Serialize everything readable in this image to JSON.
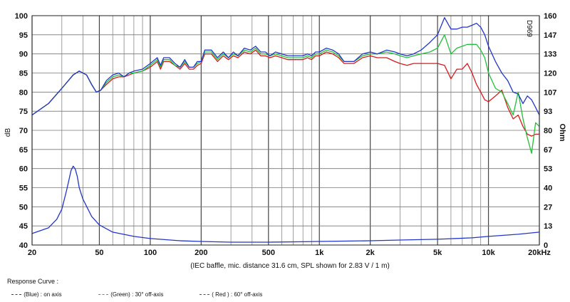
{
  "chart_data": {
    "type": "line",
    "caption": "(IEC baffle, mic. distance 31.6 cm, SPL shown for 2.83 V / 1 m)",
    "watermark": "D969",
    "y_left": {
      "label": "dB",
      "range": [
        40,
        100
      ],
      "ticks": [
        "100",
        "95",
        "90",
        "85",
        "80",
        "75",
        "70",
        "65",
        "60",
        "55",
        "50",
        "45",
        "40"
      ]
    },
    "y_right": {
      "label": "Ohm",
      "range": [
        0,
        160
      ],
      "ticks": [
        "160",
        "147",
        "133",
        "120",
        "107",
        "93",
        "80",
        "67",
        "53",
        "40",
        "27",
        "13",
        "0"
      ]
    },
    "x": {
      "scale": "log",
      "range": [
        20,
        20000
      ],
      "ticks": [
        {
          "v": 20,
          "label": "20"
        },
        {
          "v": 50,
          "label": "50"
        },
        {
          "v": 100,
          "label": "100"
        },
        {
          "v": 200,
          "label": "200"
        },
        {
          "v": 500,
          "label": "500"
        },
        {
          "v": 1000,
          "label": "1k"
        },
        {
          "v": 2000,
          "label": "2k"
        },
        {
          "v": 5000,
          "label": "5k"
        },
        {
          "v": 10000,
          "label": "10k"
        },
        {
          "v": 20000,
          "label": "20kHz"
        }
      ]
    },
    "grid": true,
    "series": [
      {
        "name": "(Blue) : on axis",
        "color": "#2236c8",
        "axis": "left",
        "points": [
          [
            20,
            74
          ],
          [
            25,
            77
          ],
          [
            30,
            81
          ],
          [
            35,
            84.5
          ],
          [
            38,
            85.5
          ],
          [
            42,
            84.5
          ],
          [
            45,
            82
          ],
          [
            48,
            80
          ],
          [
            51,
            80.5
          ],
          [
            55,
            83
          ],
          [
            60,
            84.5
          ],
          [
            65,
            85
          ],
          [
            70,
            84
          ],
          [
            75,
            85
          ],
          [
            80,
            85.5
          ],
          [
            90,
            86
          ],
          [
            100,
            87.5
          ],
          [
            110,
            89
          ],
          [
            115,
            87
          ],
          [
            120,
            89
          ],
          [
            130,
            89
          ],
          [
            140,
            87.5
          ],
          [
            150,
            86.5
          ],
          [
            160,
            88.5
          ],
          [
            170,
            86.5
          ],
          [
            180,
            86.5
          ],
          [
            190,
            88
          ],
          [
            200,
            88
          ],
          [
            210,
            91
          ],
          [
            230,
            91
          ],
          [
            250,
            89
          ],
          [
            270,
            90.5
          ],
          [
            290,
            89
          ],
          [
            310,
            90.5
          ],
          [
            330,
            89.5
          ],
          [
            360,
            91.5
          ],
          [
            390,
            91
          ],
          [
            420,
            92
          ],
          [
            450,
            90.5
          ],
          [
            480,
            90.5
          ],
          [
            510,
            89.5
          ],
          [
            550,
            90.5
          ],
          [
            600,
            90
          ],
          [
            650,
            89.5
          ],
          [
            700,
            89.5
          ],
          [
            750,
            89.5
          ],
          [
            800,
            89.5
          ],
          [
            850,
            90
          ],
          [
            900,
            89.5
          ],
          [
            950,
            90.5
          ],
          [
            1000,
            90.5
          ],
          [
            1100,
            91.5
          ],
          [
            1200,
            91
          ],
          [
            1300,
            90
          ],
          [
            1400,
            88
          ],
          [
            1600,
            88
          ],
          [
            1800,
            90
          ],
          [
            2000,
            90.5
          ],
          [
            2200,
            90
          ],
          [
            2500,
            91
          ],
          [
            2800,
            90.5
          ],
          [
            3000,
            90
          ],
          [
            3300,
            89.5
          ],
          [
            3600,
            90
          ],
          [
            4000,
            91
          ],
          [
            4500,
            93
          ],
          [
            5000,
            95
          ],
          [
            5500,
            99.5
          ],
          [
            6000,
            96.5
          ],
          [
            6500,
            96.5
          ],
          [
            7000,
            97
          ],
          [
            7500,
            97
          ],
          [
            8000,
            97.5
          ],
          [
            8500,
            98
          ],
          [
            9000,
            97
          ],
          [
            9500,
            95
          ],
          [
            10000,
            92
          ],
          [
            11000,
            88
          ],
          [
            12000,
            85
          ],
          [
            13000,
            83
          ],
          [
            14000,
            80
          ],
          [
            15000,
            79.5
          ],
          [
            16000,
            77
          ],
          [
            17000,
            79
          ],
          [
            18000,
            78
          ],
          [
            19000,
            76
          ],
          [
            20000,
            74
          ]
        ]
      },
      {
        "name": "(Green) : 30° off-axis",
        "color": "#22c03a",
        "axis": "left",
        "points": [
          [
            20,
            74
          ],
          [
            25,
            77
          ],
          [
            30,
            81
          ],
          [
            35,
            84.5
          ],
          [
            38,
            85.5
          ],
          [
            42,
            84.5
          ],
          [
            45,
            82
          ],
          [
            48,
            80
          ],
          [
            51,
            80.5
          ],
          [
            55,
            82.5
          ],
          [
            60,
            84
          ],
          [
            65,
            84.5
          ],
          [
            70,
            84
          ],
          [
            75,
            85
          ],
          [
            80,
            85
          ],
          [
            90,
            85.5
          ],
          [
            100,
            87
          ],
          [
            110,
            88.5
          ],
          [
            115,
            86.5
          ],
          [
            120,
            88.5
          ],
          [
            130,
            88.5
          ],
          [
            140,
            87
          ],
          [
            150,
            86.5
          ],
          [
            160,
            88
          ],
          [
            170,
            86.5
          ],
          [
            180,
            86.5
          ],
          [
            190,
            87.5
          ],
          [
            200,
            88
          ],
          [
            210,
            90.5
          ],
          [
            230,
            90.5
          ],
          [
            250,
            88.5
          ],
          [
            270,
            90
          ],
          [
            290,
            89
          ],
          [
            310,
            90
          ],
          [
            330,
            89.5
          ],
          [
            360,
            91
          ],
          [
            390,
            90.5
          ],
          [
            420,
            91.5
          ],
          [
            450,
            90
          ],
          [
            480,
            90
          ],
          [
            510,
            89.5
          ],
          [
            550,
            90
          ],
          [
            600,
            89.5
          ],
          [
            650,
            89
          ],
          [
            700,
            89
          ],
          [
            750,
            89
          ],
          [
            800,
            89
          ],
          [
            850,
            89.5
          ],
          [
            900,
            89
          ],
          [
            950,
            90
          ],
          [
            1000,
            90
          ],
          [
            1100,
            91
          ],
          [
            1200,
            90.5
          ],
          [
            1300,
            89.5
          ],
          [
            1400,
            88
          ],
          [
            1600,
            88
          ],
          [
            1800,
            89.5
          ],
          [
            2000,
            90
          ],
          [
            2200,
            90
          ],
          [
            2500,
            90.5
          ],
          [
            2800,
            90
          ],
          [
            3000,
            89.5
          ],
          [
            3300,
            89
          ],
          [
            3600,
            89.5
          ],
          [
            4000,
            90
          ],
          [
            4500,
            90.5
          ],
          [
            5000,
            91.5
          ],
          [
            5500,
            95
          ],
          [
            6000,
            90
          ],
          [
            6500,
            91.5
          ],
          [
            7000,
            92
          ],
          [
            7500,
            92.5
          ],
          [
            8000,
            92.5
          ],
          [
            8500,
            92.5
          ],
          [
            9000,
            91
          ],
          [
            9500,
            89
          ],
          [
            10000,
            85
          ],
          [
            11000,
            81
          ],
          [
            12000,
            80
          ],
          [
            13000,
            77
          ],
          [
            14000,
            74
          ],
          [
            15000,
            80
          ],
          [
            16000,
            73
          ],
          [
            17000,
            68
          ],
          [
            18000,
            64
          ],
          [
            19000,
            72
          ],
          [
            20000,
            71
          ]
        ]
      },
      {
        "name": "( Red ) : 60° off-axis",
        "color": "#d81a1a",
        "axis": "left",
        "points": [
          [
            20,
            74
          ],
          [
            25,
            77
          ],
          [
            30,
            81
          ],
          [
            35,
            84.5
          ],
          [
            38,
            85.5
          ],
          [
            42,
            84.5
          ],
          [
            45,
            82
          ],
          [
            48,
            80
          ],
          [
            51,
            80.5
          ],
          [
            55,
            82
          ],
          [
            60,
            83.5
          ],
          [
            65,
            84
          ],
          [
            70,
            84
          ],
          [
            75,
            84.5
          ],
          [
            80,
            85
          ],
          [
            90,
            85.5
          ],
          [
            100,
            86.5
          ],
          [
            110,
            88
          ],
          [
            115,
            86
          ],
          [
            120,
            88
          ],
          [
            130,
            88
          ],
          [
            140,
            87
          ],
          [
            150,
            86
          ],
          [
            160,
            87.5
          ],
          [
            170,
            86
          ],
          [
            180,
            86
          ],
          [
            190,
            87
          ],
          [
            200,
            87.5
          ],
          [
            210,
            90
          ],
          [
            230,
            90
          ],
          [
            250,
            88
          ],
          [
            270,
            89.5
          ],
          [
            290,
            88.5
          ],
          [
            310,
            89.5
          ],
          [
            330,
            89
          ],
          [
            360,
            90.5
          ],
          [
            390,
            90
          ],
          [
            420,
            91
          ],
          [
            450,
            89.5
          ],
          [
            480,
            89.5
          ],
          [
            510,
            89
          ],
          [
            550,
            89.5
          ],
          [
            600,
            89
          ],
          [
            650,
            88.5
          ],
          [
            700,
            88.5
          ],
          [
            750,
            88.5
          ],
          [
            800,
            88.5
          ],
          [
            850,
            89
          ],
          [
            900,
            88.5
          ],
          [
            950,
            89.5
          ],
          [
            1000,
            89.5
          ],
          [
            1100,
            90.5
          ],
          [
            1200,
            90
          ],
          [
            1300,
            89
          ],
          [
            1400,
            87.5
          ],
          [
            1600,
            87.5
          ],
          [
            1800,
            89
          ],
          [
            2000,
            89.5
          ],
          [
            2200,
            89
          ],
          [
            2500,
            89
          ],
          [
            2800,
            88
          ],
          [
            3000,
            87.5
          ],
          [
            3300,
            87
          ],
          [
            3600,
            87.5
          ],
          [
            4000,
            87.5
          ],
          [
            4500,
            87.5
          ],
          [
            5000,
            87.5
          ],
          [
            5500,
            87
          ],
          [
            6000,
            83.5
          ],
          [
            6500,
            86
          ],
          [
            7000,
            86
          ],
          [
            7500,
            87.5
          ],
          [
            8000,
            85
          ],
          [
            8500,
            82
          ],
          [
            9000,
            80
          ],
          [
            9500,
            78
          ],
          [
            10000,
            77.5
          ],
          [
            11000,
            79
          ],
          [
            12000,
            80.5
          ],
          [
            13000,
            76
          ],
          [
            14000,
            73
          ],
          [
            15000,
            74
          ],
          [
            16000,
            71
          ],
          [
            17000,
            69
          ],
          [
            18000,
            68.5
          ],
          [
            19000,
            69
          ],
          [
            20000,
            69
          ]
        ]
      },
      {
        "name": "Impedance",
        "color": "#2236c8",
        "axis": "right",
        "points": [
          [
            20,
            8
          ],
          [
            25,
            12
          ],
          [
            28,
            18
          ],
          [
            30,
            25
          ],
          [
            32,
            38
          ],
          [
            33,
            45
          ],
          [
            34,
            52
          ],
          [
            35,
            55
          ],
          [
            36,
            53
          ],
          [
            37,
            48
          ],
          [
            38,
            40
          ],
          [
            40,
            32
          ],
          [
            45,
            20
          ],
          [
            50,
            14
          ],
          [
            60,
            9
          ],
          [
            80,
            6
          ],
          [
            100,
            4.5
          ],
          [
            150,
            3
          ],
          [
            200,
            2.5
          ],
          [
            300,
            2
          ],
          [
            500,
            2
          ],
          [
            800,
            2.3
          ],
          [
            1000,
            2.5
          ],
          [
            2000,
            3
          ],
          [
            3000,
            3.5
          ],
          [
            5000,
            4
          ],
          [
            8000,
            5
          ],
          [
            10000,
            6
          ],
          [
            15000,
            7.5
          ],
          [
            20000,
            9
          ]
        ]
      }
    ]
  },
  "legend": {
    "title": "Response Curve :",
    "items": [
      {
        "label": "(Blue)  : on axis",
        "color": "#2236c8"
      },
      {
        "label": "(Green) : 30° off-axis",
        "color": "#22c03a"
      },
      {
        "label": "( Red ) : 60° off-axis",
        "color": "#d81a1a"
      }
    ]
  }
}
